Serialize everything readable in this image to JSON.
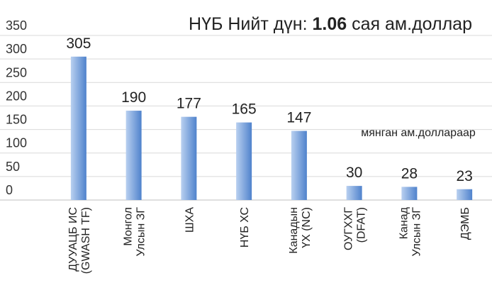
{
  "chart_data": {
    "type": "bar",
    "annotation": {
      "prefix": "НҮБ Нийт дүн:",
      "total": "1.06",
      "suffix": "сая ам.доллар"
    },
    "unit_note": "мянган ам.доллараар",
    "categories": [
      [
        "ДУУАЦБ ИС",
        "(GWASH TF)"
      ],
      [
        "Монгол",
        "Улсын ЗГ"
      ],
      [
        "ШХА"
      ],
      [
        "НҮБ ХС"
      ],
      [
        "Канадын",
        "ҮХ (NC)"
      ],
      [
        "ОУГХХГ",
        "(DFAT)"
      ],
      [
        "Канад",
        "Улсын ЗГ"
      ],
      [
        "ДЭМБ"
      ]
    ],
    "values": [
      305,
      190,
      177,
      165,
      147,
      30,
      28,
      23
    ],
    "color": "#6f9bd8",
    "ylim": [
      0,
      350
    ],
    "yticks": [
      0,
      50,
      100,
      150,
      200,
      250,
      300,
      350
    ],
    "grid": true
  }
}
